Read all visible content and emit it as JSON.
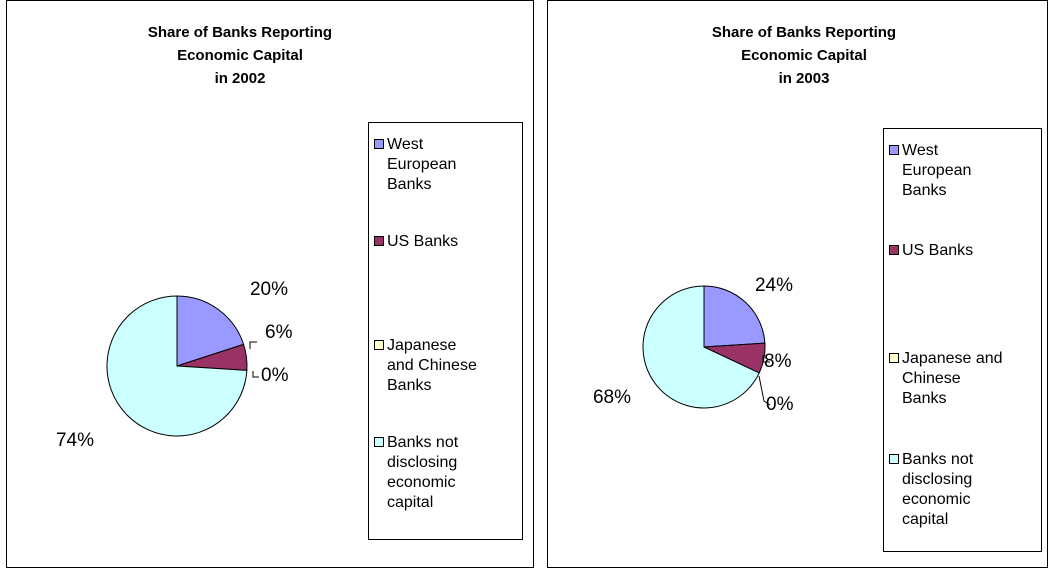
{
  "chart_data": [
    {
      "type": "pie",
      "title": "Share of Banks Reporting\nEconomic Capital\nin 2002",
      "legend_placement": "right",
      "categories": [
        "West European Banks",
        "US Banks",
        "Japanese and Chinese Banks",
        "Banks not disclosing economic capital"
      ],
      "legend_labels": [
        "West\nEuropean\nBanks",
        "US Banks",
        "Japanese\nand Chinese\nBanks",
        "Banks not\ndisclosing\neconomic\ncapital"
      ],
      "values": [
        20,
        6,
        0,
        74
      ],
      "data_labels": [
        "20%",
        "6%",
        "0%",
        "74%"
      ],
      "colors": [
        "#9999ff",
        "#993366",
        "#ffffcc",
        "#ccffff"
      ]
    },
    {
      "type": "pie",
      "title": "Share of Banks Reporting\nEconomic Capital\nin 2003",
      "legend_placement": "right",
      "categories": [
        "West European Banks",
        "US Banks",
        "Japanese and Chinese Banks",
        "Banks not disclosing economic capital"
      ],
      "legend_labels": [
        "West\nEuropean\nBanks",
        "US Banks",
        "Japanese and\nChinese\nBanks",
        "Banks not\ndisclosing\neconomic\ncapital"
      ],
      "values": [
        24,
        8,
        0,
        68
      ],
      "data_labels": [
        "24%",
        "8%",
        "0%",
        "68%"
      ],
      "colors": [
        "#9999ff",
        "#993366",
        "#ffffcc",
        "#ccffff"
      ]
    }
  ]
}
